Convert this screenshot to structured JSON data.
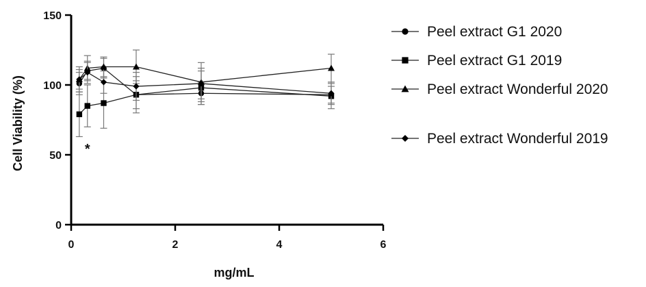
{
  "chart_data": {
    "type": "line",
    "title": "",
    "xlabel": "mg/mL",
    "ylabel": "Cell Viability (%)",
    "xlim": [
      0,
      6
    ],
    "ylim": [
      0,
      150
    ],
    "xticks": [
      0,
      2,
      4,
      6
    ],
    "yticks": [
      0,
      50,
      100,
      150
    ],
    "grid": false,
    "legend_position": "right",
    "series": [
      {
        "name": "Peel extract G1 2020",
        "marker": "circle",
        "x": [
          0.156,
          0.3125,
          0.625,
          1.25,
          2.5,
          5
        ],
        "y": [
          101,
          110,
          112,
          93,
          94,
          93
        ],
        "err": [
          8,
          6,
          7,
          10,
          8,
          6
        ]
      },
      {
        "name": "Peel extract G1 2019",
        "marker": "square",
        "x": [
          0.156,
          0.3125,
          0.625,
          1.25,
          2.5,
          5
        ],
        "y": [
          79,
          85,
          87,
          93,
          98,
          92
        ],
        "err": [
          16,
          15,
          18,
          13,
          12,
          9
        ]
      },
      {
        "name": "Peel extract Wonderful 2020",
        "marker": "triangle",
        "x": [
          0.156,
          0.3125,
          0.625,
          1.25,
          2.5,
          5
        ],
        "y": [
          104,
          112,
          113,
          113,
          102,
          112
        ],
        "err": [
          9,
          9,
          7,
          12,
          14,
          10
        ]
      },
      {
        "name": "Peel extract Wonderful 2019",
        "marker": "diamond",
        "x": [
          0.156,
          0.3125,
          0.625,
          1.25,
          2.5,
          5
        ],
        "y": [
          104,
          109,
          102,
          99,
          101,
          94
        ],
        "err": [
          7,
          8,
          8,
          10,
          11,
          8
        ]
      }
    ],
    "annotations": [
      {
        "text": "*",
        "x": 0.3125,
        "y": 55
      }
    ]
  }
}
